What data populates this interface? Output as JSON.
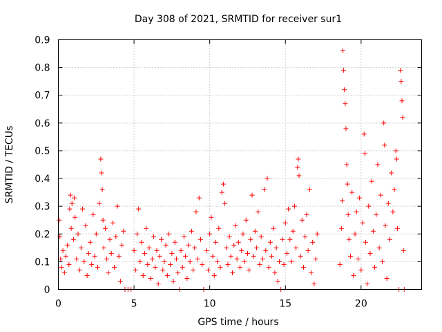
{
  "chart_data": {
    "type": "scatter",
    "title": "Day 308 of 2021, SRMTID for receiver sur1",
    "xlabel": "GPS time / hours",
    "ylabel": "SRMTID / TECUs",
    "xlim": [
      0,
      24
    ],
    "ylim": [
      0,
      0.9
    ],
    "xticks": [
      0,
      5,
      10,
      15,
      20
    ],
    "yticks": [
      0,
      0.1,
      0.2,
      0.3,
      0.4,
      0.5,
      0.6,
      0.7,
      0.8,
      0.9
    ],
    "grid": true,
    "marker": "plus",
    "color": "#ff0000",
    "series": [
      {
        "name": "sur1",
        "points": [
          [
            0.05,
            0.25
          ],
          [
            0.1,
            0.19
          ],
          [
            0.15,
            0.11
          ],
          [
            0.2,
            0.08
          ],
          [
            0.3,
            0.14
          ],
          [
            0.4,
            0.06
          ],
          [
            0.5,
            0.12
          ],
          [
            0.6,
            0.16
          ],
          [
            0.7,
            0.09
          ],
          [
            0.75,
            0.29
          ],
          [
            0.8,
            0.34
          ],
          [
            0.85,
            0.22
          ],
          [
            0.9,
            0.31
          ],
          [
            1.0,
            0.18
          ],
          [
            1.05,
            0.33
          ],
          [
            1.1,
            0.26
          ],
          [
            1.2,
            0.11
          ],
          [
            1.3,
            0.2
          ],
          [
            1.4,
            0.07
          ],
          [
            1.5,
            0.15
          ],
          [
            1.6,
            0.29
          ],
          [
            1.7,
            0.1
          ],
          [
            1.8,
            0.23
          ],
          [
            1.9,
            0.05
          ],
          [
            2.0,
            0.13
          ],
          [
            2.1,
            0.17
          ],
          [
            2.2,
            0.09
          ],
          [
            2.3,
            0.27
          ],
          [
            2.4,
            0.12
          ],
          [
            2.5,
            0.2
          ],
          [
            2.6,
            0.08
          ],
          [
            2.7,
            0.31
          ],
          [
            2.8,
            0.47
          ],
          [
            2.85,
            0.42
          ],
          [
            2.9,
            0.36
          ],
          [
            2.95,
            0.25
          ],
          [
            3.0,
            0.15
          ],
          [
            3.1,
            0.22
          ],
          [
            3.2,
            0.11
          ],
          [
            3.3,
            0.06
          ],
          [
            3.4,
            0.18
          ],
          [
            3.5,
            0.13
          ],
          [
            3.6,
            0.24
          ],
          [
            3.7,
            0.08
          ],
          [
            3.8,
            0.19
          ],
          [
            3.9,
            0.3
          ],
          [
            4.0,
            0.12
          ],
          [
            4.1,
            0.03
          ],
          [
            4.2,
            0.16
          ],
          [
            4.3,
            0.21
          ],
          [
            4.4,
            0.0
          ],
          [
            4.6,
            0.0
          ],
          [
            4.8,
            0.0
          ],
          [
            5.0,
            0.14
          ],
          [
            5.1,
            0.07
          ],
          [
            5.2,
            0.2
          ],
          [
            5.3,
            0.29
          ],
          [
            5.4,
            0.1
          ],
          [
            5.5,
            0.17
          ],
          [
            5.6,
            0.05
          ],
          [
            5.7,
            0.13
          ],
          [
            5.8,
            0.22
          ],
          [
            5.9,
            0.09
          ],
          [
            6.0,
            0.15
          ],
          [
            6.1,
            0.04
          ],
          [
            6.2,
            0.11
          ],
          [
            6.3,
            0.19
          ],
          [
            6.4,
            0.08
          ],
          [
            6.5,
            0.14
          ],
          [
            6.6,
            0.02
          ],
          [
            6.7,
            0.12
          ],
          [
            6.8,
            0.18
          ],
          [
            6.9,
            0.07
          ],
          [
            7.0,
            0.1
          ],
          [
            7.1,
            0.16
          ],
          [
            7.2,
            0.05
          ],
          [
            7.3,
            0.2
          ],
          [
            7.4,
            0.09
          ],
          [
            7.5,
            0.13
          ],
          [
            7.6,
            0.03
          ],
          [
            7.7,
            0.17
          ],
          [
            7.8,
            0.11
          ],
          [
            7.9,
            0.06
          ],
          [
            8.0,
            0.0
          ],
          [
            8.1,
            0.14
          ],
          [
            8.2,
            0.08
          ],
          [
            8.3,
            0.19
          ],
          [
            8.4,
            0.12
          ],
          [
            8.5,
            0.04
          ],
          [
            8.6,
            0.16
          ],
          [
            8.7,
            0.1
          ],
          [
            8.8,
            0.21
          ],
          [
            8.9,
            0.07
          ],
          [
            9.0,
            0.15
          ],
          [
            9.1,
            0.28
          ],
          [
            9.2,
            0.11
          ],
          [
            9.3,
            0.33
          ],
          [
            9.4,
            0.18
          ],
          [
            9.5,
            0.09
          ],
          [
            9.6,
            0.0
          ],
          [
            9.8,
            0.14
          ],
          [
            9.9,
            0.07
          ],
          [
            10.0,
            0.2
          ],
          [
            10.1,
            0.26
          ],
          [
            10.2,
            0.12
          ],
          [
            10.3,
            0.05
          ],
          [
            10.4,
            0.17
          ],
          [
            10.5,
            0.1
          ],
          [
            10.6,
            0.22
          ],
          [
            10.7,
            0.08
          ],
          [
            10.8,
            0.35
          ],
          [
            10.9,
            0.38
          ],
          [
            11.0,
            0.31
          ],
          [
            11.1,
            0.15
          ],
          [
            11.2,
            0.09
          ],
          [
            11.3,
            0.19
          ],
          [
            11.4,
            0.12
          ],
          [
            11.5,
            0.06
          ],
          [
            11.6,
            0.16
          ],
          [
            11.7,
            0.23
          ],
          [
            11.8,
            0.11
          ],
          [
            11.9,
            0.17
          ],
          [
            12.0,
            0.08
          ],
          [
            12.1,
            0.14
          ],
          [
            12.2,
            0.2
          ],
          [
            12.3,
            0.1
          ],
          [
            12.4,
            0.25
          ],
          [
            12.5,
            0.13
          ],
          [
            12.6,
            0.07
          ],
          [
            12.7,
            0.18
          ],
          [
            12.8,
            0.34
          ],
          [
            12.9,
            0.12
          ],
          [
            13.0,
            0.21
          ],
          [
            13.1,
            0.15
          ],
          [
            13.2,
            0.28
          ],
          [
            13.3,
            0.09
          ],
          [
            13.4,
            0.19
          ],
          [
            13.5,
            0.11
          ],
          [
            13.6,
            0.36
          ],
          [
            13.7,
            0.14
          ],
          [
            13.8,
            0.4
          ],
          [
            13.9,
            0.08
          ],
          [
            14.0,
            0.17
          ],
          [
            14.1,
            0.12
          ],
          [
            14.2,
            0.22
          ],
          [
            14.3,
            0.06
          ],
          [
            14.4,
            0.15
          ],
          [
            14.5,
            0.03
          ],
          [
            14.6,
            0.1
          ],
          [
            14.7,
            0.0
          ],
          [
            14.8,
            0.18
          ],
          [
            14.9,
            0.09
          ],
          [
            15.0,
            0.24
          ],
          [
            15.1,
            0.13
          ],
          [
            15.2,
            0.29
          ],
          [
            15.3,
            0.18
          ],
          [
            15.4,
            0.1
          ],
          [
            15.5,
            0.21
          ],
          [
            15.6,
            0.3
          ],
          [
            15.7,
            0.15
          ],
          [
            15.8,
            0.44
          ],
          [
            15.85,
            0.47
          ],
          [
            15.9,
            0.41
          ],
          [
            16.0,
            0.12
          ],
          [
            16.1,
            0.25
          ],
          [
            16.2,
            0.08
          ],
          [
            16.3,
            0.19
          ],
          [
            16.4,
            0.27
          ],
          [
            16.5,
            0.14
          ],
          [
            16.6,
            0.36
          ],
          [
            16.7,
            0.06
          ],
          [
            16.8,
            0.17
          ],
          [
            16.9,
            0.02
          ],
          [
            17.0,
            0.11
          ],
          [
            17.1,
            0.2
          ],
          [
            18.6,
            0.09
          ],
          [
            18.7,
            0.22
          ],
          [
            18.75,
            0.32
          ],
          [
            18.8,
            0.86
          ],
          [
            18.85,
            0.79
          ],
          [
            18.9,
            0.72
          ],
          [
            18.95,
            0.67
          ],
          [
            19.0,
            0.58
          ],
          [
            19.05,
            0.45
          ],
          [
            19.1,
            0.38
          ],
          [
            19.15,
            0.27
          ],
          [
            19.2,
            0.18
          ],
          [
            19.3,
            0.12
          ],
          [
            19.4,
            0.35
          ],
          [
            19.5,
            0.05
          ],
          [
            19.6,
            0.2
          ],
          [
            19.7,
            0.28
          ],
          [
            19.8,
            0.11
          ],
          [
            19.9,
            0.33
          ],
          [
            20.0,
            0.07
          ],
          [
            20.1,
            0.24
          ],
          [
            20.2,
            0.56
          ],
          [
            20.25,
            0.49
          ],
          [
            20.3,
            0.17
          ],
          [
            20.4,
            0.02
          ],
          [
            20.5,
            0.3
          ],
          [
            20.6,
            0.13
          ],
          [
            20.7,
            0.39
          ],
          [
            20.8,
            0.21
          ],
          [
            20.9,
            0.08
          ],
          [
            21.0,
            0.27
          ],
          [
            21.1,
            0.45
          ],
          [
            21.2,
            0.15
          ],
          [
            21.3,
            0.34
          ],
          [
            21.4,
            0.1
          ],
          [
            21.5,
            0.6
          ],
          [
            21.55,
            0.52
          ],
          [
            21.6,
            0.23
          ],
          [
            21.7,
            0.04
          ],
          [
            21.8,
            0.31
          ],
          [
            21.9,
            0.18
          ],
          [
            22.0,
            0.42
          ],
          [
            22.1,
            0.28
          ],
          [
            22.2,
            0.36
          ],
          [
            22.3,
            0.5
          ],
          [
            22.35,
            0.47
          ],
          [
            22.4,
            0.22
          ],
          [
            22.5,
            0.0
          ],
          [
            22.6,
            0.79
          ],
          [
            22.65,
            0.75
          ],
          [
            22.7,
            0.68
          ],
          [
            22.75,
            0.62
          ],
          [
            22.8,
            0.14
          ],
          [
            22.85,
            0.0
          ]
        ]
      }
    ]
  }
}
